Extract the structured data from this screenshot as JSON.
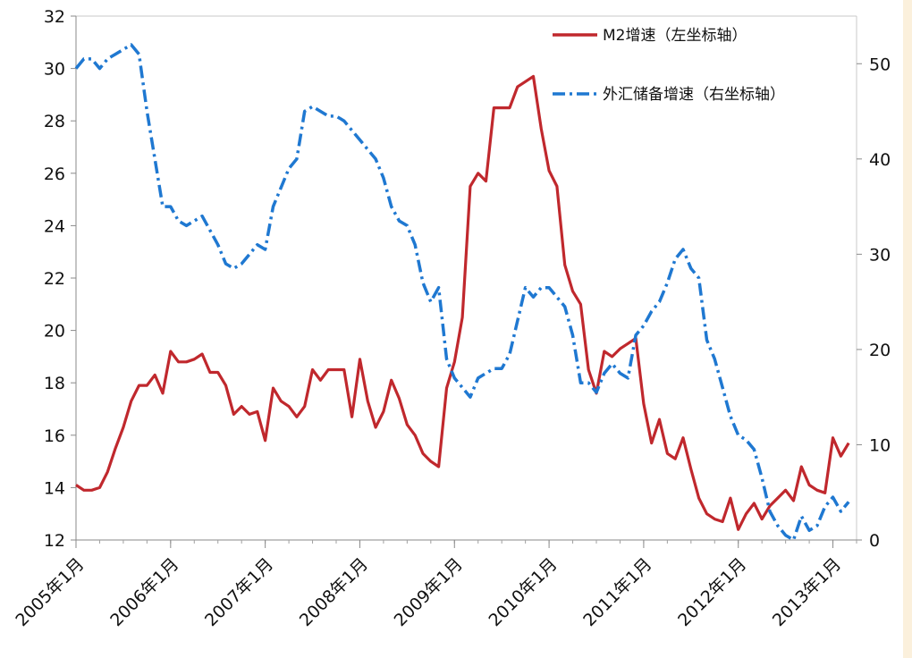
{
  "chart_data": {
    "type": "line",
    "left_axis": {
      "min": 12,
      "max": 32,
      "ticks": [
        12,
        14,
        16,
        18,
        20,
        22,
        24,
        26,
        28,
        30,
        32
      ]
    },
    "right_axis": {
      "min": 0,
      "max": 55,
      "ticks": [
        0,
        10,
        20,
        30,
        40,
        50
      ]
    },
    "x_axis": {
      "min_month": 0,
      "max_month": 99,
      "tick_labels": [
        "2005年1月",
        "2006年1月",
        "2007年1月",
        "2008年1月",
        "2009年1月",
        "2010年1月",
        "2011年1月",
        "2012年1月",
        "2013年1月"
      ],
      "tick_months": [
        0,
        12,
        24,
        36,
        48,
        60,
        72,
        84,
        96
      ]
    },
    "legend_position": "top-right",
    "grid": false,
    "series": [
      {
        "name": "M2增速（左坐标轴）",
        "axis": "left",
        "color": "#c0282d",
        "style": "solid",
        "x_start": "2005年1月",
        "values": [
          14.1,
          13.9,
          13.9,
          14.0,
          14.6,
          15.5,
          16.3,
          17.3,
          17.9,
          17.9,
          18.3,
          17.6,
          19.2,
          18.8,
          18.8,
          18.9,
          19.1,
          18.4,
          18.4,
          17.9,
          16.8,
          17.1,
          16.8,
          16.9,
          15.8,
          17.8,
          17.3,
          17.1,
          16.7,
          17.1,
          18.5,
          18.1,
          18.5,
          18.5,
          18.5,
          16.7,
          18.9,
          17.3,
          16.3,
          16.9,
          18.1,
          17.4,
          16.4,
          16.0,
          15.3,
          15.0,
          14.8,
          17.8,
          18.8,
          20.5,
          25.5,
          26.0,
          25.7,
          28.5,
          28.5,
          28.5,
          29.3,
          29.5,
          29.7,
          27.7,
          26.1,
          25.5,
          22.5,
          21.5,
          21.0,
          18.5,
          17.6,
          19.2,
          19.0,
          19.3,
          19.5,
          19.7,
          17.2,
          15.7,
          16.6,
          15.3,
          15.1,
          15.9,
          14.7,
          13.6,
          13.0,
          12.8,
          12.7,
          13.6,
          12.4,
          13.0,
          13.4,
          12.8,
          13.3,
          13.6,
          13.9,
          13.5,
          14.8,
          14.1,
          13.9,
          13.8,
          15.9,
          15.2,
          15.7
        ]
      },
      {
        "name": "外汇储备增速（右坐标轴）",
        "axis": "right",
        "color": "#1f78d1",
        "style": "dashdot",
        "x_start": "2005年1月",
        "values": [
          49.5,
          50.5,
          50.5,
          49.5,
          50.5,
          51.0,
          51.5,
          52.0,
          51.0,
          45.0,
          40.0,
          35.0,
          35.0,
          33.5,
          33.0,
          33.5,
          34.0,
          32.5,
          31.0,
          29.0,
          28.5,
          29.0,
          30.0,
          31.0,
          30.5,
          35.0,
          37.0,
          39.0,
          40.0,
          45.0,
          45.5,
          45.0,
          44.5,
          44.5,
          44.0,
          43.0,
          42.0,
          41.0,
          40.0,
          38.0,
          35.0,
          33.5,
          33.0,
          31.0,
          27.0,
          25.0,
          26.5,
          19.0,
          17.0,
          16.0,
          15.0,
          17.0,
          17.5,
          18.0,
          18.0,
          19.5,
          23.0,
          26.5,
          25.5,
          26.5,
          26.5,
          25.5,
          24.5,
          21.5,
          16.5,
          16.5,
          15.5,
          17.5,
          18.5,
          17.5,
          17.0,
          21.5,
          22.5,
          24.0,
          25.0,
          27.0,
          29.5,
          30.5,
          28.5,
          27.5,
          21.0,
          19.0,
          16.0,
          13.0,
          11.0,
          10.5,
          9.5,
          6.5,
          3.0,
          1.5,
          0.5,
          0.0,
          2.5,
          1.0,
          1.5,
          3.5,
          4.5,
          3.0,
          4.0
        ]
      }
    ]
  }
}
